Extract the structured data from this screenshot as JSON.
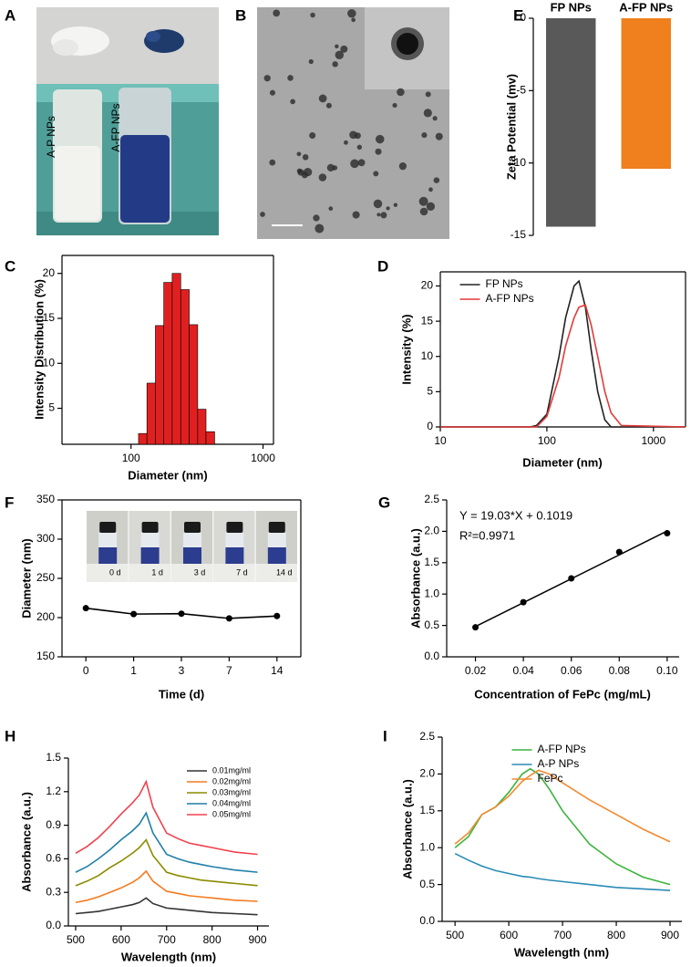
{
  "chart_data": [
    {
      "type": "image",
      "panel": "A",
      "labels": [
        "A-P NPs",
        "A-FP NPs"
      ]
    },
    {
      "type": "image",
      "panel": "B"
    },
    {
      "type": "histogram",
      "panel": "C",
      "xlabel": "Diameter (nm)",
      "ylabel": "Intensity Distribution (%)",
      "bins": [
        114,
        132,
        153,
        177,
        205,
        238,
        276,
        320,
        370,
        430
      ],
      "values": [
        2.2,
        7.8,
        14.2,
        19.0,
        20.0,
        18.2,
        14.3,
        4.9,
        2.4
      ],
      "color": "#e02020",
      "xscale": "log",
      "xlim": [
        30,
        1200
      ],
      "ylim": [
        1,
        22
      ],
      "xticks": [
        100,
        1000
      ],
      "yticks": [
        5,
        10,
        15,
        20
      ]
    },
    {
      "type": "line",
      "panel": "D",
      "xlabel": "Diameter (nm)",
      "ylabel": "Intensity  (%)",
      "x": [
        10,
        70,
        80,
        100,
        130,
        150,
        180,
        200,
        230,
        260,
        300,
        350,
        400,
        500,
        2000
      ],
      "series": [
        {
          "name": "FP NPs",
          "color": "#222222",
          "values": [
            0,
            0,
            0.2,
            1.8,
            10,
            15.5,
            20,
            20.7,
            17,
            11,
            5,
            1,
            0,
            0,
            0
          ]
        },
        {
          "name": "A-FP NPs",
          "color": "#e03a3a",
          "values": [
            0,
            0,
            0,
            1.5,
            7,
            11.5,
            15.5,
            17,
            17.3,
            14.5,
            10,
            5,
            2,
            0.2,
            0
          ]
        }
      ],
      "xscale": "log",
      "xlim": [
        10,
        2000
      ],
      "ylim": [
        0,
        22
      ],
      "xticks": [
        10,
        100,
        1000
      ],
      "yticks": [
        0,
        5,
        10,
        15,
        20
      ],
      "legend": "upper left"
    },
    {
      "type": "bar",
      "panel": "E",
      "ylabel": "Zeta Potential (mv)",
      "categories": [
        "FP NPs",
        "A-FP NPs"
      ],
      "values": [
        -14.4,
        -10.4
      ],
      "colors": [
        "#595959",
        "#f07f1e"
      ],
      "ylim": [
        -15,
        0
      ],
      "yticks": [
        -15,
        -10,
        -5,
        0
      ]
    },
    {
      "type": "line",
      "panel": "F",
      "xlabel": "Time (d)",
      "ylabel": "Diameter (nm)",
      "categories": [
        "0",
        "1",
        "3",
        "7",
        "14"
      ],
      "values": [
        212,
        204.5,
        205,
        199,
        202
      ],
      "color": "#000000",
      "markers": true,
      "ylim": [
        150,
        350
      ],
      "yticks": [
        150,
        200,
        250,
        300,
        350
      ],
      "inset_labels": [
        "0 d",
        "1 d",
        "3 d",
        "7 d",
        "14 d"
      ]
    },
    {
      "type": "scatter",
      "panel": "G",
      "xlabel": "Concentration of FePc (mg/mL)",
      "ylabel": "Absorbance (a.u.)",
      "x": [
        0.02,
        0.04,
        0.06,
        0.08,
        0.1
      ],
      "values": [
        0.47,
        0.87,
        1.25,
        1.67,
        1.97
      ],
      "color": "#000000",
      "fit": {
        "slope": 19.03,
        "intercept": 0.1019
      },
      "annotations": [
        "Y = 19.03*X + 0.1019",
        "R²=0.9971"
      ],
      "xlim": [
        0.008,
        0.105
      ],
      "ylim": [
        0,
        2.5
      ],
      "xticks": [
        0.02,
        0.04,
        0.06,
        0.08,
        {
          "value": 0.1,
          "label": "0.10"
        }
      ],
      "yticks": [
        {
          "value": 0,
          "label": "0.0"
        },
        0.5,
        {
          "value": 1,
          "label": "1.0"
        },
        1.5,
        {
          "value": 2,
          "label": "2.0"
        },
        2.5
      ]
    },
    {
      "type": "line",
      "panel": "H",
      "xlabel": "Wavelength (nm)",
      "ylabel": "Absorbance (a.u.)",
      "x": [
        500,
        525,
        550,
        575,
        600,
        625,
        640,
        655,
        670,
        700,
        725,
        750,
        775,
        800,
        850,
        900
      ],
      "series": [
        {
          "name": "0.01mg/ml",
          "color": "#333333",
          "values": [
            0.11,
            0.12,
            0.13,
            0.15,
            0.17,
            0.19,
            0.21,
            0.25,
            0.2,
            0.16,
            0.15,
            0.14,
            0.13,
            0.12,
            0.11,
            0.1
          ]
        },
        {
          "name": "0.02mg/ml",
          "color": "#f47a20",
          "values": [
            0.21,
            0.23,
            0.26,
            0.3,
            0.34,
            0.39,
            0.43,
            0.49,
            0.4,
            0.31,
            0.29,
            0.27,
            0.26,
            0.25,
            0.23,
            0.22
          ]
        },
        {
          "name": "0.03mg/ml",
          "color": "#8b8b00",
          "values": [
            0.36,
            0.4,
            0.45,
            0.52,
            0.58,
            0.65,
            0.7,
            0.77,
            0.63,
            0.48,
            0.45,
            0.43,
            0.41,
            0.4,
            0.38,
            0.36
          ]
        },
        {
          "name": "0.04mg/ml",
          "color": "#1f7fa8",
          "values": [
            0.48,
            0.53,
            0.6,
            0.68,
            0.77,
            0.85,
            0.91,
            1.01,
            0.83,
            0.64,
            0.6,
            0.57,
            0.55,
            0.53,
            0.5,
            0.48
          ]
        },
        {
          "name": "0.05mg/ml",
          "color": "#f0414d",
          "values": [
            0.65,
            0.71,
            0.79,
            0.89,
            1.0,
            1.1,
            1.17,
            1.29,
            1.06,
            0.83,
            0.78,
            0.74,
            0.72,
            0.7,
            0.66,
            0.64
          ]
        }
      ],
      "xlim": [
        484,
        925
      ],
      "ylim": [
        0,
        1.5
      ],
      "xticks": [
        500,
        600,
        700,
        800,
        900
      ],
      "yticks": [
        {
          "value": 0,
          "label": "0.0"
        },
        0.3,
        0.6,
        0.9,
        1.2,
        1.5
      ],
      "legend": "upper right"
    },
    {
      "type": "line",
      "panel": "I",
      "xlabel": "Wavelength (nm)",
      "ylabel": "Absorbance (a.u.)",
      "x": [
        500,
        525,
        550,
        575,
        600,
        625,
        640,
        655,
        675,
        700,
        750,
        800,
        850,
        900
      ],
      "series": [
        {
          "name": "A-FP NPs",
          "color": "#3cb43c",
          "values": [
            1.0,
            1.15,
            1.45,
            1.55,
            1.75,
            2.0,
            2.07,
            2.0,
            1.8,
            1.5,
            1.05,
            0.78,
            0.6,
            0.5
          ]
        },
        {
          "name": "A-P NPs",
          "color": "#2a8bb5",
          "values": [
            0.92,
            0.83,
            0.75,
            0.69,
            0.65,
            0.61,
            0.6,
            0.58,
            0.56,
            0.54,
            0.5,
            0.46,
            0.44,
            0.42
          ]
        },
        {
          "name": "FePc",
          "color": "#f28a30",
          "values": [
            1.05,
            1.2,
            1.45,
            1.55,
            1.7,
            1.9,
            1.98,
            2.05,
            2.0,
            1.88,
            1.65,
            1.45,
            1.25,
            1.08
          ]
        }
      ],
      "xlim": [
        476,
        922
      ],
      "ylim": [
        0,
        2.5
      ],
      "xticks": [
        500,
        600,
        700,
        800,
        900
      ],
      "yticks": [
        {
          "value": 0,
          "label": "0.0"
        },
        0.5,
        {
          "value": 1,
          "label": "1.0"
        },
        1.5,
        {
          "value": 2,
          "label": "2.0"
        },
        2.5
      ],
      "legend": "upper center"
    }
  ]
}
